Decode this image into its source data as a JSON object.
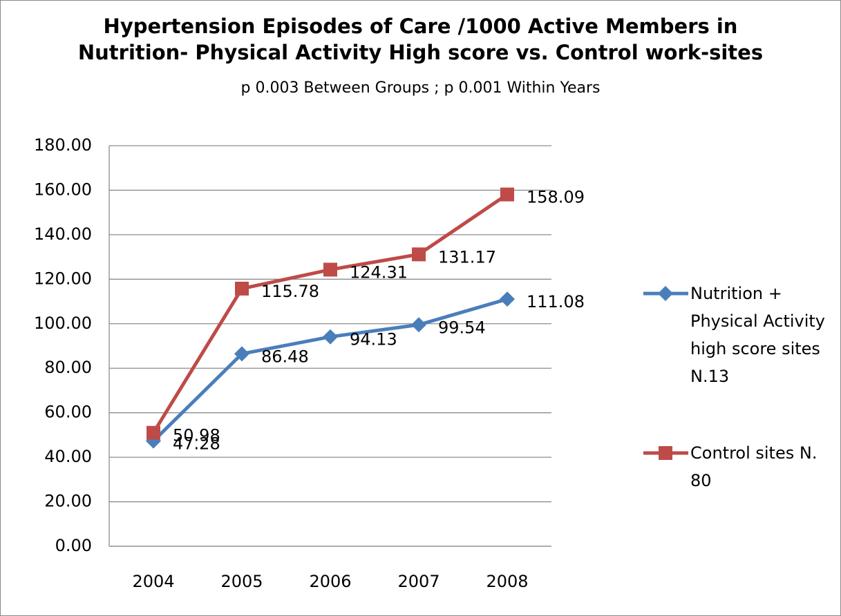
{
  "chart_data": {
    "type": "line",
    "title": "Hypertension Episodes of Care /1000 Active Members in\nNutrition- Physical Activity High score  vs. Control work-sites",
    "subtitle": "p 0.003 Between Groups ; p 0.001 Within Years",
    "categories": [
      "2004",
      "2005",
      "2006",
      "2007",
      "2008"
    ],
    "series": [
      {
        "name": "Nutrition + Physical  Activity high score sites N.13",
        "color": "#4a7ebb",
        "marker": "diamond",
        "values": [
          47.28,
          86.48,
          94.13,
          99.54,
          111.08
        ]
      },
      {
        "name": "Control sites N. 80",
        "color": "#be4b48",
        "marker": "square",
        "values": [
          50.98,
          115.78,
          124.31,
          131.17,
          158.09
        ]
      }
    ],
    "ylim": [
      0,
      180
    ],
    "yticks": [
      {
        "value": 0,
        "label": "0.00"
      },
      {
        "value": 20,
        "label": "20.00"
      },
      {
        "value": 40,
        "label": "40.00"
      },
      {
        "value": 60,
        "label": "60.00"
      },
      {
        "value": 80,
        "label": "80.00"
      },
      {
        "value": 100,
        "label": "100.00"
      },
      {
        "value": 120,
        "label": "120.00"
      },
      {
        "value": 140,
        "label": "140.00"
      },
      {
        "value": 160,
        "label": "160.00"
      },
      {
        "value": 180,
        "label": "180.00"
      }
    ],
    "grid": true,
    "legend": "right"
  }
}
